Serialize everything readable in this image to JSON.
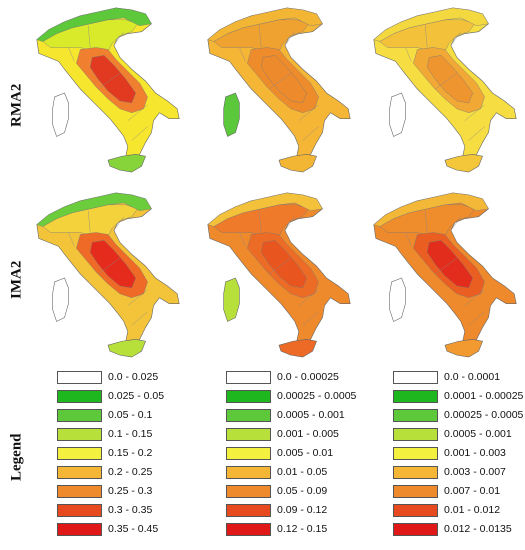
{
  "row_labels": [
    "RMA2",
    "IMA2",
    "Legend"
  ],
  "maps": [
    {
      "row": 0,
      "col": 0,
      "colors": {
        "north": "#5cc83a",
        "northInner": "#d9ea2a",
        "center": "#f08030",
        "core": "#e23a20",
        "south": "#f6e62e",
        "sicily": "#86d43a",
        "sardinia": "#ffffff"
      }
    },
    {
      "row": 0,
      "col": 1,
      "colors": {
        "north": "#f3b534",
        "northInner": "#f0a230",
        "center": "#ee8c2c",
        "core": "#ed8a2c",
        "south": "#f5b636",
        "sicily": "#f3b534",
        "sardinia": "#5ac83a"
      }
    },
    {
      "row": 0,
      "col": 2,
      "colors": {
        "north": "#f4d840",
        "northInner": "#f3c23a",
        "center": "#f1a834",
        "core": "#ef9530",
        "south": "#f5dd42",
        "sicily": "#f4c63a",
        "sardinia": "#ffffff"
      }
    },
    {
      "row": 1,
      "col": 0,
      "colors": {
        "north": "#6ccd3c",
        "northInner": "#f4d23c",
        "center": "#ef6a26",
        "core": "#e52b1c",
        "south": "#f3c43a",
        "sicily": "#b8e03a",
        "sardinia": "#ffffff"
      }
    },
    {
      "row": 1,
      "col": 1,
      "colors": {
        "north": "#f4c23a",
        "northInner": "#ee7a2a",
        "center": "#ec6c26",
        "core": "#e8551f",
        "south": "#ef8a2c",
        "sicily": "#ec6a26",
        "sardinia": "#b8e03a"
      }
    },
    {
      "row": 1,
      "col": 2,
      "colors": {
        "north": "#f4b838",
        "northInner": "#ef8c2c",
        "center": "#ea5e22",
        "core": "#e32d1c",
        "south": "#ef8a2c",
        "sicily": "#f29a30",
        "sardinia": "#ffffff"
      }
    }
  ],
  "legends": [
    {
      "items": [
        {
          "label": "0.0 - 0.025",
          "color": "#ffffff"
        },
        {
          "label": "0.025 - 0.05",
          "color": "#1eb81e"
        },
        {
          "label": "0.05 - 0.1",
          "color": "#5cc83a"
        },
        {
          "label": "0.1 - 0.15",
          "color": "#b8e03a"
        },
        {
          "label": "0.15 - 0.2",
          "color": "#f4f040"
        },
        {
          "label": "0.2 - 0.25",
          "color": "#f5b636"
        },
        {
          "label": "0.25 - 0.3",
          "color": "#ef8a2c"
        },
        {
          "label": "0.3 - 0.35",
          "color": "#e84a20"
        },
        {
          "label": "0.35 - 0.45",
          "color": "#e01818"
        }
      ]
    },
    {
      "items": [
        {
          "label": "0.0 - 0.00025",
          "color": "#ffffff"
        },
        {
          "label": "0.00025 - 0.0005",
          "color": "#1eb81e"
        },
        {
          "label": "0.0005 - 0.001",
          "color": "#5cc83a"
        },
        {
          "label": "0.001 - 0.005",
          "color": "#b8e03a"
        },
        {
          "label": "0.005 - 0.01",
          "color": "#f4f040"
        },
        {
          "label": "0.01 - 0.05",
          "color": "#f5b636"
        },
        {
          "label": "0.05 - 0.09",
          "color": "#ef8a2c"
        },
        {
          "label": "0.09 - 0.12",
          "color": "#e84a20"
        },
        {
          "label": "0.12 - 0.15",
          "color": "#e01818"
        }
      ]
    },
    {
      "items": [
        {
          "label": "0.0 - 0.0001",
          "color": "#ffffff"
        },
        {
          "label": "0.0001 - 0.00025",
          "color": "#1eb81e"
        },
        {
          "label": "0.00025 - 0.0005",
          "color": "#5cc83a"
        },
        {
          "label": "0.0005 - 0.001",
          "color": "#b8e03a"
        },
        {
          "label": "0.001 - 0.003",
          "color": "#f4f040"
        },
        {
          "label": "0.003 - 0.007",
          "color": "#f5b636"
        },
        {
          "label": "0.007 - 0.01",
          "color": "#ef8a2c"
        },
        {
          "label": "0.01 - 0.012",
          "color": "#e84a20"
        },
        {
          "label": "0.012 - 0.0135",
          "color": "#e01818"
        }
      ]
    }
  ]
}
